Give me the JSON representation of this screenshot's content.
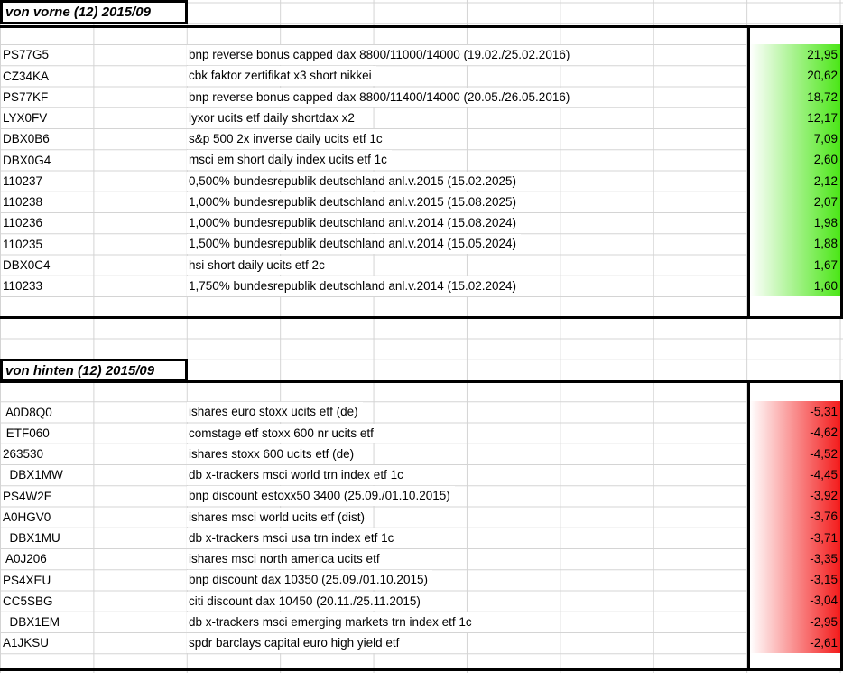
{
  "sheet": {
    "grid_color": "#d4d4d4",
    "border_color": "#000000"
  },
  "tables": [
    {
      "title": "von vorne (12) 2015/09",
      "gradient_start": "#ffffff",
      "gradient_end": "#4be617",
      "rows": [
        {
          "code": "PS77G5",
          "desc": "bnp reverse bonus capped dax 8800/11000/14000 (19.02./25.02.2016)",
          "value": "21,95"
        },
        {
          "code": "CZ34KA",
          "desc": "cbk faktor zertifikat x3 short nikkei",
          "value": "20,62"
        },
        {
          "code": "PS77KF",
          "desc": "bnp reverse bonus capped dax 8800/11400/14000 (20.05./26.05.2016)",
          "value": "18,72"
        },
        {
          "code": "LYX0FV",
          "desc": "lyxor ucits etf daily shortdax x2",
          "value": "12,17"
        },
        {
          "code": "DBX0B6",
          "desc": "s&p 500 2x inverse daily ucits etf 1c",
          "value": "7,09"
        },
        {
          "code": "DBX0G4",
          "desc": "msci em short daily index ucits etf 1c",
          "value": "2,60"
        },
        {
          "code": "110237",
          "desc": "0,500% bundesrepublik deutschland anl.v.2015 (15.02.2025)",
          "value": "2,12"
        },
        {
          "code": "110238",
          "desc": "1,000% bundesrepublik deutschland anl.v.2015 (15.08.2025)",
          "value": "2,07"
        },
        {
          "code": "110236",
          "desc": "1,000% bundesrepublik deutschland anl.v.2014 (15.08.2024)",
          "value": "1,98"
        },
        {
          "code": "110235",
          "desc": "1,500% bundesrepublik deutschland anl.v.2014 (15.05.2024)",
          "value": "1,88"
        },
        {
          "code": "DBX0C4",
          "desc": "hsi short daily ucits etf 2c",
          "value": "1,67"
        },
        {
          "code": "110233",
          "desc": "1,750% bundesrepublik deutschland anl.v.2014 (15.02.2024)",
          "value": "1,60"
        }
      ]
    },
    {
      "title": "von hinten (12) 2015/09",
      "gradient_start": "#ffffff",
      "gradient_end": "#f31b1b",
      "rows": [
        {
          "code": " A0D8Q0",
          "desc": "ishares euro stoxx ucits etf (de)",
          "value": "-5,31"
        },
        {
          "code": " ETF060",
          "desc": "comstage etf stoxx 600 nr ucits etf",
          "value": "-4,62"
        },
        {
          "code": "263530",
          "desc": "ishares stoxx 600 ucits etf (de)",
          "value": "-4,52"
        },
        {
          "code": "  DBX1MW",
          "desc": "db x-trackers msci world trn index etf 1c",
          "value": "-4,45"
        },
        {
          "code": "PS4W2E",
          "desc": "bnp discount estoxx50 3400 (25.09./01.10.2015)",
          "value": "-3,92"
        },
        {
          "code": "A0HGV0",
          "desc": "ishares msci world ucits etf (dist)",
          "value": "-3,76"
        },
        {
          "code": "  DBX1MU",
          "desc": "db x-trackers msci usa trn index etf 1c",
          "value": "-3,71"
        },
        {
          "code": " A0J206",
          "desc": "ishares msci north america ucits etf",
          "value": "-3,35"
        },
        {
          "code": "PS4XEU",
          "desc": "bnp discount dax 10350 (25.09./01.10.2015)",
          "value": "-3,15"
        },
        {
          "code": "CC5SBG",
          "desc": "citi discount dax 10450 (20.11./25.11.2015)",
          "value": "-3,04"
        },
        {
          "code": "  DBX1EM",
          "desc": "db x-trackers msci emerging markets trn index etf 1c",
          "value": "-2,95"
        },
        {
          "code": "A1JKSU",
          "desc": "spdr barclays capital euro high yield etf",
          "value": "-2,61"
        }
      ]
    }
  ]
}
